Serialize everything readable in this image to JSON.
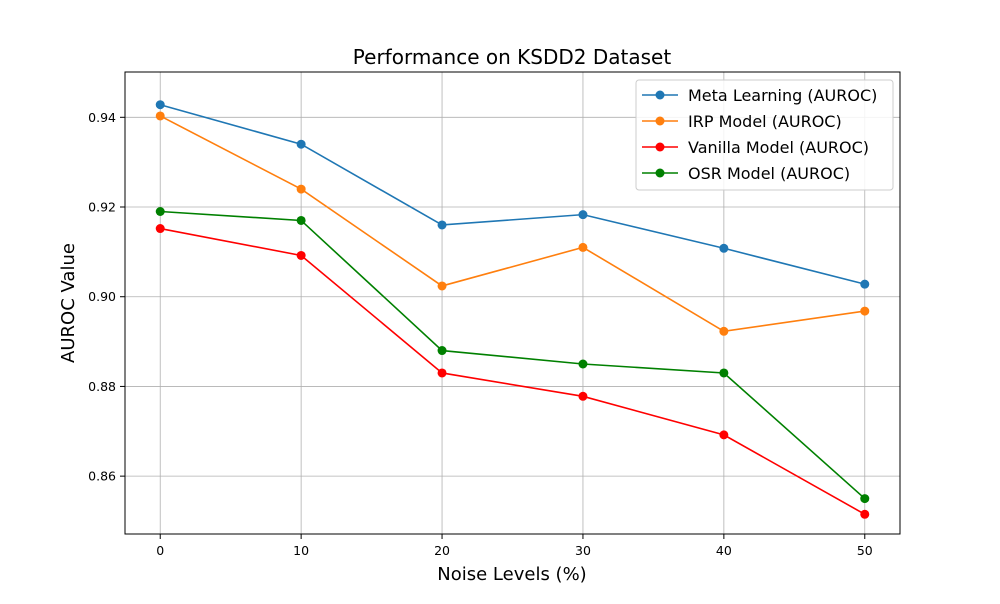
{
  "chart_data": {
    "type": "line",
    "title": "Performance on KSDD2 Dataset",
    "xlabel": "Noise Levels (%)",
    "ylabel": "AUROC Value",
    "x": [
      0,
      10,
      20,
      30,
      40,
      50
    ],
    "xticks": [
      0,
      10,
      20,
      30,
      40,
      50
    ],
    "xtick_labels": [
      "0",
      "10",
      "20",
      "30",
      "40",
      "50"
    ],
    "yticks": [
      0.86,
      0.88,
      0.9,
      0.92,
      0.94
    ],
    "ytick_labels": [
      "0.86",
      "0.88",
      "0.90",
      "0.92",
      "0.94"
    ],
    "xlim": [
      -2.5,
      52.5
    ],
    "ylim": [
      0.8471,
      0.9501
    ],
    "grid": true,
    "legend_position": "top-right",
    "series": [
      {
        "name": "Meta Learning (AUROC)",
        "color": "#1f77b4",
        "values": [
          0.9428,
          0.934,
          0.916,
          0.9183,
          0.9108,
          0.9028
        ]
      },
      {
        "name": "IRP Model (AUROC)",
        "color": "#ff7f0e",
        "values": [
          0.9403,
          0.924,
          0.9024,
          0.911,
          0.8923,
          0.8968
        ]
      },
      {
        "name": "Vanilla Model (AUROC)",
        "color": "#ff0000",
        "values": [
          0.9152,
          0.9092,
          0.883,
          0.8778,
          0.8692,
          0.8515
        ]
      },
      {
        "name": "OSR Model (AUROC)",
        "color": "#008000",
        "values": [
          0.919,
          0.917,
          0.888,
          0.885,
          0.883,
          0.855
        ]
      }
    ]
  }
}
